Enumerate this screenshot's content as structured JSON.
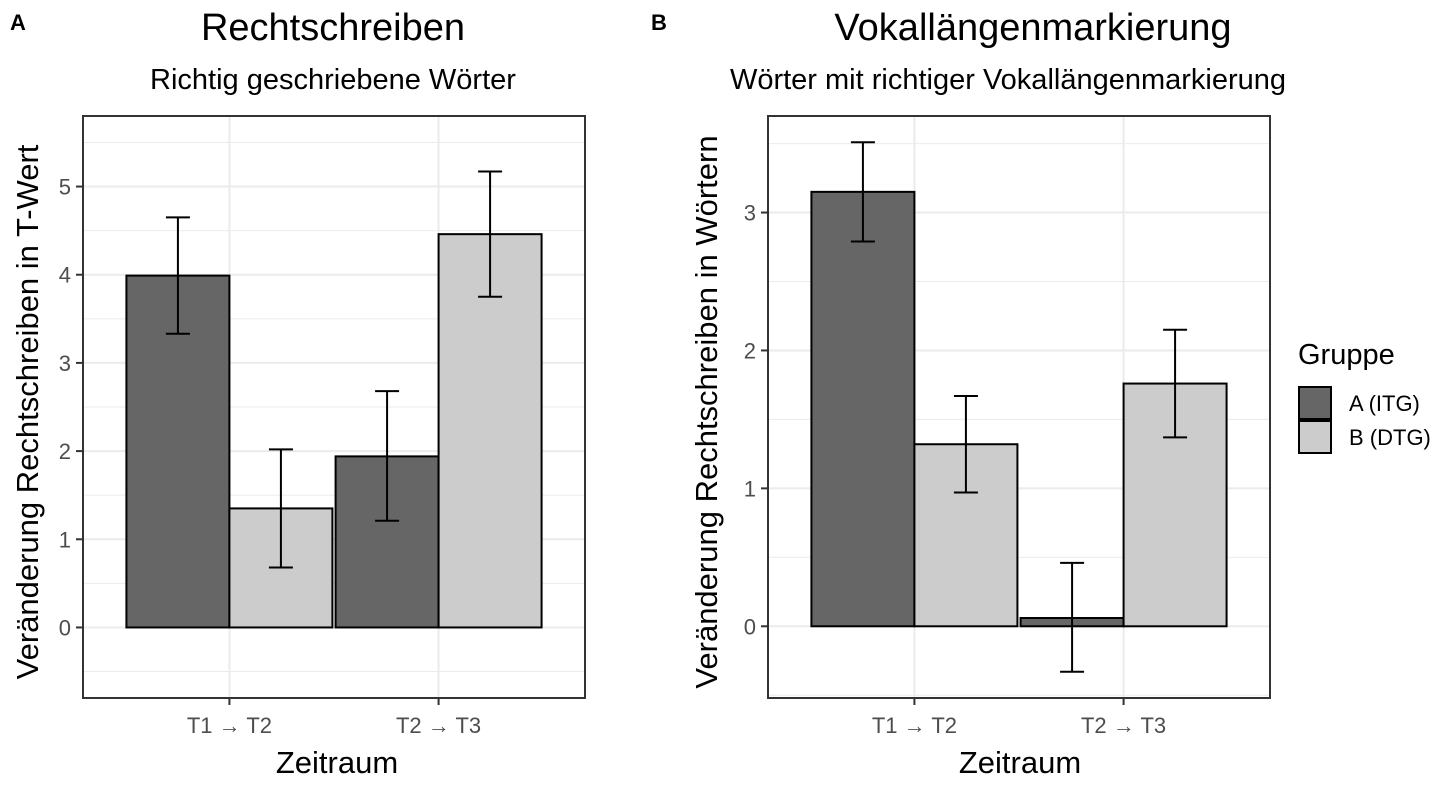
{
  "chart_data": [
    {
      "type": "bar",
      "panel_tag": "A",
      "title": "Rechtschreiben",
      "subtitle": "Richtig geschriebene Wörter",
      "xlabel": "Zeitraum",
      "ylabel": "Veränderung Rechtschreiben in T-Wert",
      "categories": [
        "T1 → T2",
        "T2 → T3"
      ],
      "ylim": [
        -0.8,
        5.8
      ],
      "yticks": [
        0,
        1,
        2,
        3,
        4,
        5
      ],
      "grid": true,
      "series": [
        {
          "name": "A (ITG)",
          "values": [
            3.99,
            1.94
          ],
          "err_low": [
            3.33,
            1.21
          ],
          "err_high": [
            4.65,
            2.68
          ]
        },
        {
          "name": "B (DTG)",
          "values": [
            1.35,
            4.46
          ],
          "err_low": [
            0.68,
            3.75
          ],
          "err_high": [
            2.02,
            5.17
          ]
        }
      ]
    },
    {
      "type": "bar",
      "panel_tag": "B",
      "title": "Vokallängenmarkierung",
      "subtitle": "Wörter mit richtiger Vokallängenmarkierung",
      "xlabel": "Zeitraum",
      "ylabel": "Veränderung Rechtschreiben in Wörtern",
      "categories": [
        "T1 → T2",
        "T2 → T3"
      ],
      "ylim": [
        -0.52,
        3.7
      ],
      "yticks": [
        0,
        1,
        2,
        3
      ],
      "grid": true,
      "series": [
        {
          "name": "A (ITG)",
          "values": [
            3.15,
            0.06
          ],
          "err_low": [
            2.79,
            -0.33
          ],
          "err_high": [
            3.51,
            0.46
          ]
        },
        {
          "name": "B (DTG)",
          "values": [
            1.32,
            1.76
          ],
          "err_low": [
            0.97,
            1.37
          ],
          "err_high": [
            1.67,
            2.15
          ]
        }
      ]
    }
  ],
  "legend": {
    "title": "Gruppe",
    "placement": "right",
    "items": [
      {
        "label": "A (ITG)",
        "color": "#666666"
      },
      {
        "label": "B (DTG)",
        "color": "#cccccc"
      }
    ]
  },
  "colors": {
    "A (ITG)": "#666666",
    "B (DTG)": "#cccccc"
  }
}
